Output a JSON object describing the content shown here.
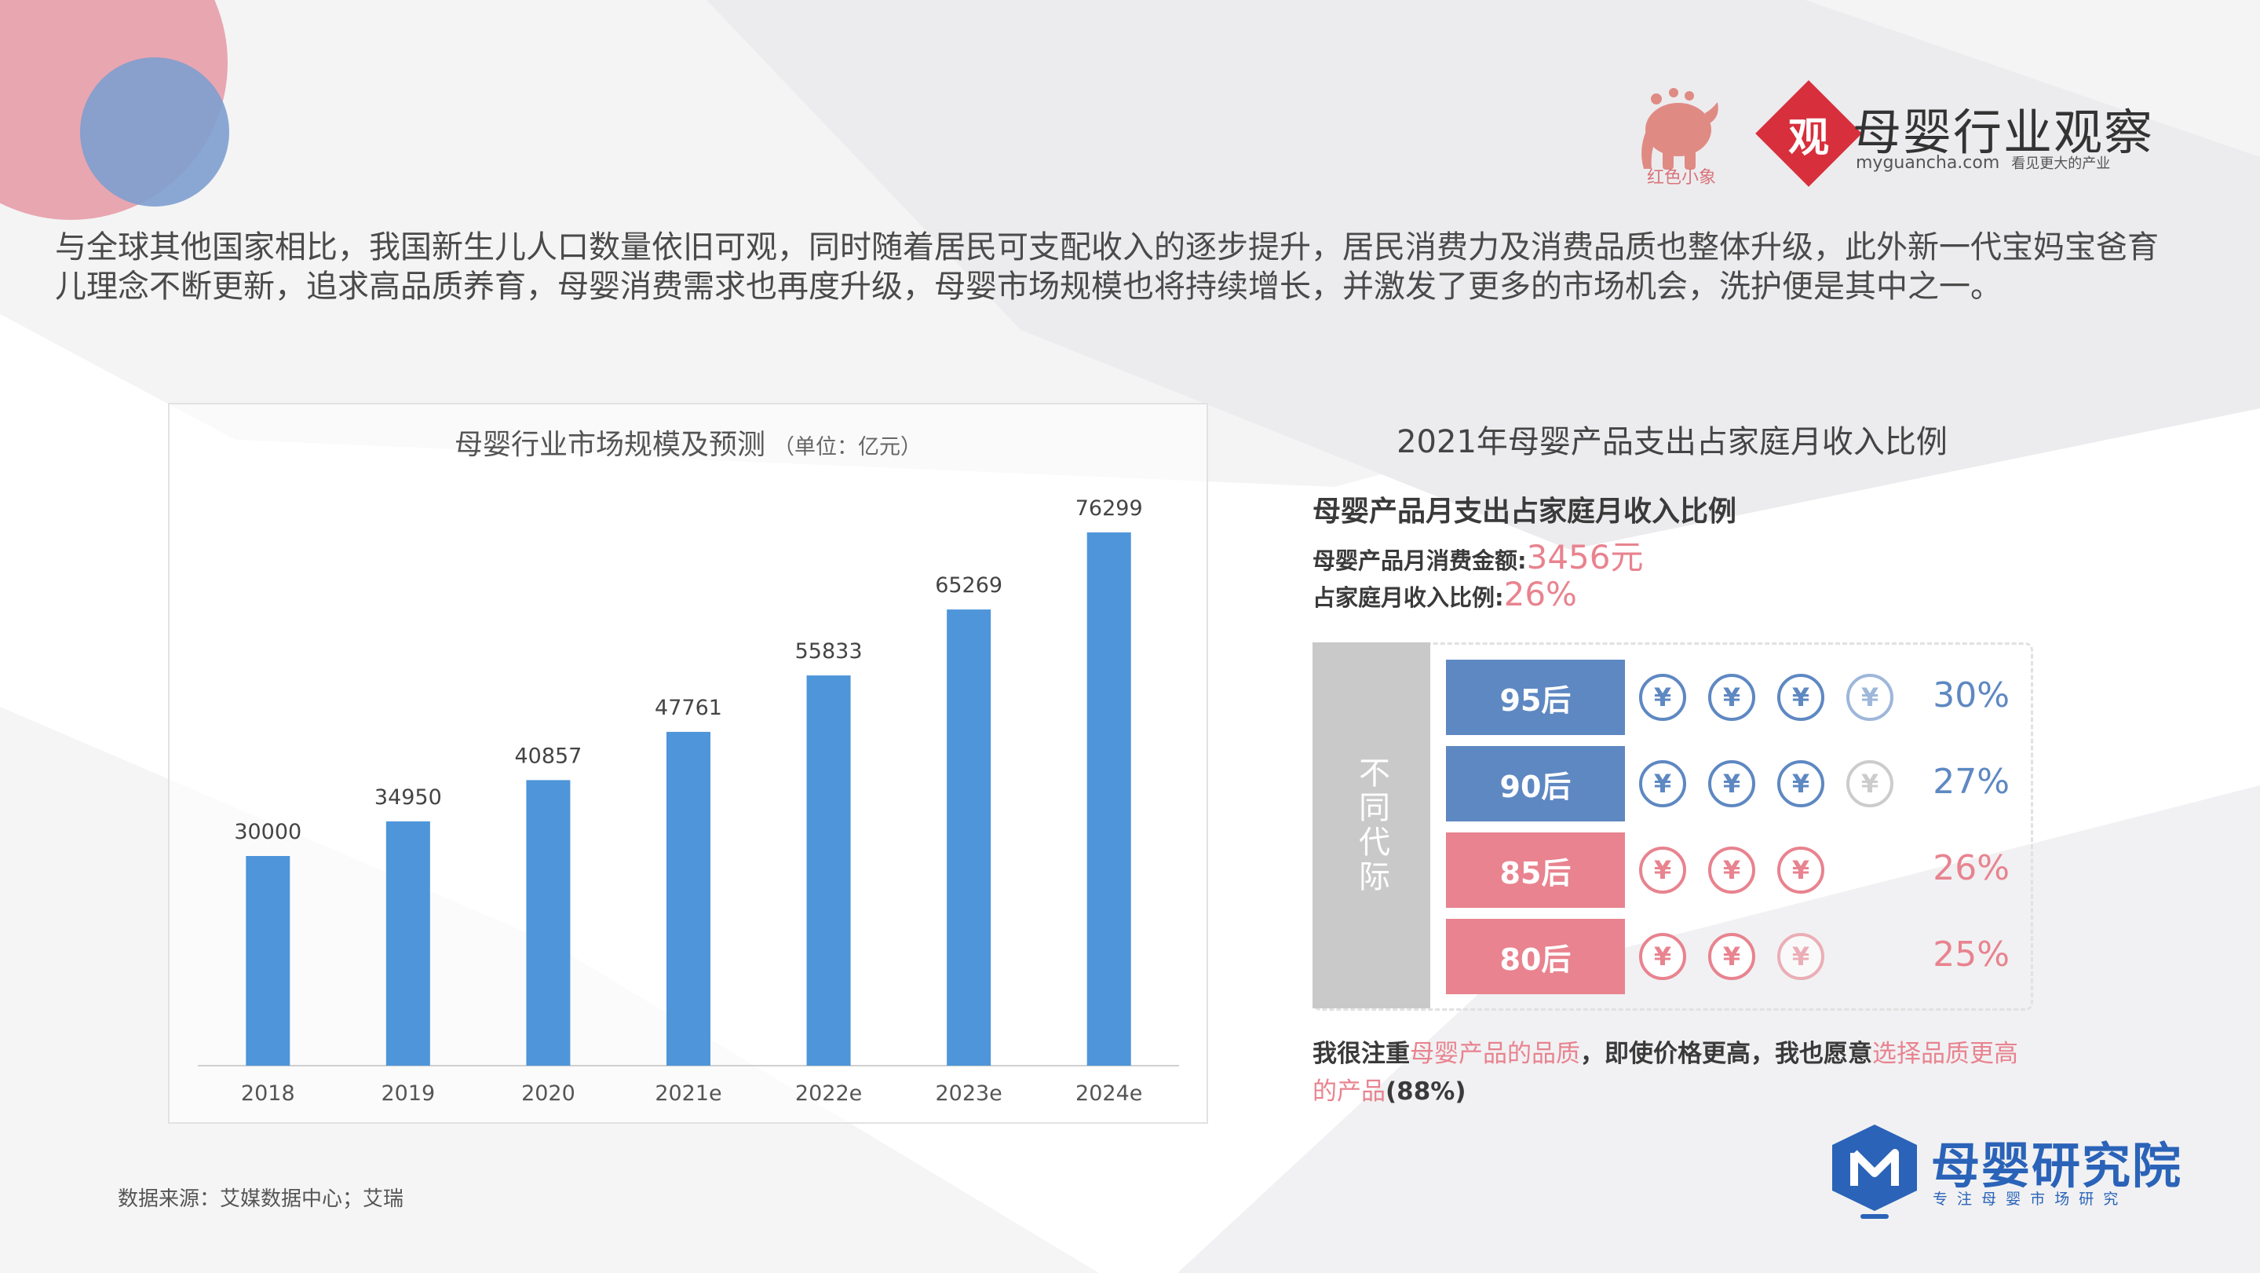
{
  "intro_text": "与全球其他国家相比，我国新生儿人口数量依旧可观，同时随着居民可支配收入的逐步提升，居民消费力及消费品质也整体升级，此外新一代宝妈宝爸育儿理念不断更新，追求高品质养育，母婴消费需求也再度升级，母婴市场规模也将持续增长，并激发了更多的市场机会，洗护便是其中之一。",
  "logos": {
    "elephant_text": "红色小象",
    "guancha_char": "观",
    "guancha_name": "母婴行业观察",
    "guancha_url": "myguancha.com",
    "guancha_slogan": "看见更大的产业",
    "institute_name": "母婴研究院",
    "institute_slogan": "专 注 母 婴 市 场 研 究"
  },
  "chart": {
    "title": "母婴行业市场规模及预测",
    "unit": "（单位：亿元）"
  },
  "chart_data": {
    "type": "bar",
    "title": "母婴行业市场规模及预测",
    "subtitle": "（单位：亿元）",
    "categories": [
      "2018",
      "2019",
      "2020",
      "2021e",
      "2022e",
      "2023e",
      "2024e"
    ],
    "values": [
      30000,
      34950,
      40857,
      47761,
      55833,
      65269,
      76299
    ],
    "data_labels": [
      "30000",
      "34950",
      "40857",
      "47761",
      "55833",
      "65269",
      "76299"
    ],
    "ylim": [
      0,
      80000
    ],
    "xlabel": "",
    "ylabel": "",
    "grid": false,
    "bar_color": "#4e95d9"
  },
  "right_panel": {
    "title": "2021年母婴产品支出占家庭月收入比例",
    "subheading": "母婴产品月支出占家庭月收入比例",
    "spend_label": "母婴产品月消费金额:",
    "spend_value": "3456元",
    "ratio_label": "占家庭月收入比例:",
    "ratio_value": "26%",
    "side_label": "不同代际",
    "coin_symbol": "¥",
    "generations": [
      {
        "label": "95后",
        "pct": "30%",
        "coins": 3.3,
        "color": "#5e88c2"
      },
      {
        "label": "90后",
        "pct": "27%",
        "coins": 3.1,
        "color": "#5e88c2"
      },
      {
        "label": "85后",
        "pct": "26%",
        "coins": 3,
        "color": "#e8838f"
      },
      {
        "label": "80后",
        "pct": "25%",
        "coins": 2.8,
        "color": "#e8838f"
      }
    ],
    "quote_part1": "我很注重",
    "quote_part2": "母婴产品的品质",
    "quote_part3": "，即使价格更高，我也愿意",
    "quote_part4": "选择品质更高的产品",
    "quote_part5": "(88%)"
  },
  "source": "数据来源：艾媒数据中心；艾瑞",
  "colors": {
    "pink": "#e8838f",
    "blue": "#5e88c2",
    "bar": "#4e95d9",
    "grey_block": "#c9c9c9",
    "logo_red": "#d7303c",
    "institute_blue": "#2a63b8"
  }
}
